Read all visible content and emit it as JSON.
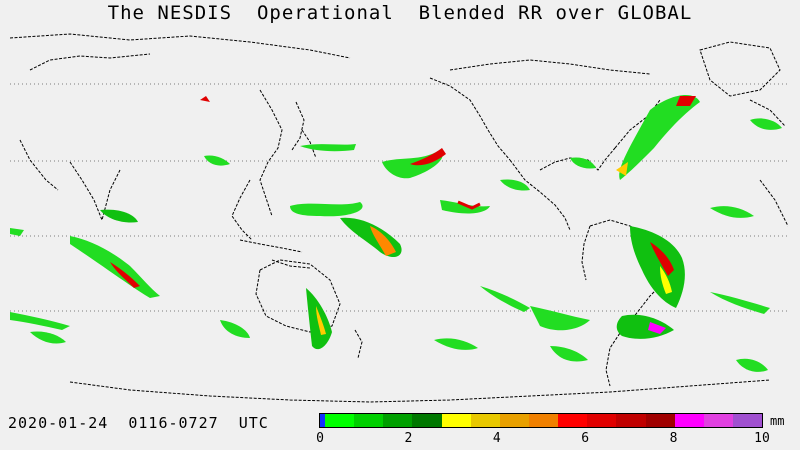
{
  "title": "The NESDIS  Operational  Blended RR over GLOBAL",
  "datetime": "2020-01-24  0116-0727  UTC",
  "colorbar": {
    "unit": "mm",
    "ticks": [
      "0",
      "2",
      "4",
      "6",
      "8",
      "10"
    ],
    "colors": [
      "#1030ff",
      "#00ff00",
      "#00d000",
      "#00a000",
      "#007800",
      "#ffff00",
      "#e8c800",
      "#e8a000",
      "#f08000",
      "#ff0000",
      "#e00000",
      "#c00000",
      "#a00000",
      "#ff00ff",
      "#e040e0",
      "#a050d0"
    ]
  }
}
